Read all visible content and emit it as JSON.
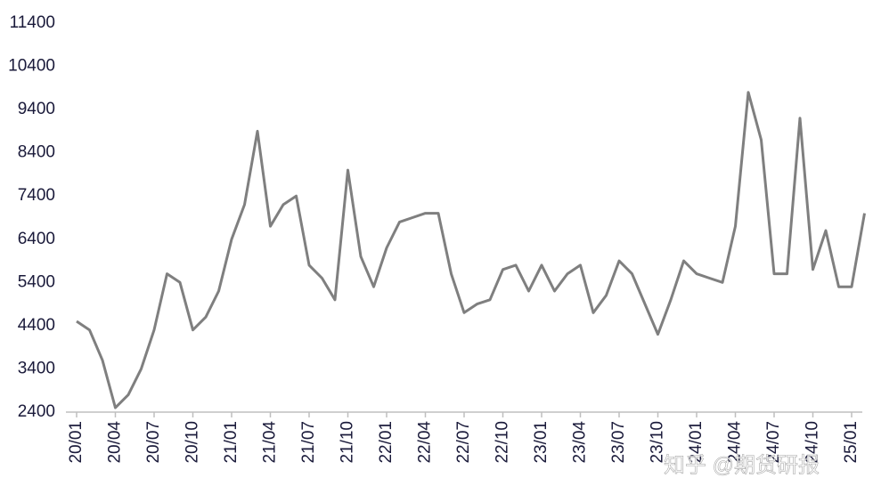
{
  "chart_data": {
    "type": "line",
    "categories": [
      "20/01",
      null,
      null,
      "20/04",
      null,
      null,
      "20/07",
      null,
      null,
      "20/10",
      null,
      null,
      "21/01",
      null,
      null,
      "21/04",
      null,
      null,
      "21/07",
      null,
      null,
      "21/10",
      null,
      null,
      "22/01",
      null,
      null,
      "22/04",
      null,
      null,
      "22/07",
      null,
      null,
      "22/10",
      null,
      null,
      "23/01",
      null,
      null,
      "23/04",
      null,
      null,
      "23/07",
      null,
      null,
      "23/10",
      null,
      null,
      "24/01",
      null,
      null,
      "24/04",
      null,
      null,
      "24/07",
      null,
      null,
      "24/10",
      null,
      null,
      "25/01",
      null
    ],
    "series": [
      {
        "color": "#7f7f7f",
        "values": [
          4500,
          4300,
          3600,
          2500,
          2800,
          3400,
          4300,
          5600,
          5400,
          4300,
          4600,
          5200,
          6400,
          7200,
          8900,
          6700,
          7200,
          7400,
          5800,
          5500,
          5000,
          8000,
          6000,
          5300,
          6200,
          6800,
          6900,
          7000,
          7000,
          5600,
          4700,
          4900,
          5000,
          5700,
          5800,
          5200,
          5800,
          5200,
          5600,
          5800,
          4700,
          5100,
          5900,
          5600,
          4900,
          4200,
          5000,
          5900,
          5600,
          5500,
          5400,
          6700,
          9800,
          8700,
          5600,
          5600,
          9200,
          5700,
          6600,
          5300,
          5300,
          7000
        ]
      }
    ],
    "ylim": [
      2400,
      11400
    ],
    "yticks": [
      2400,
      3400,
      4400,
      5400,
      6400,
      7400,
      8400,
      9400,
      10400,
      11400
    ],
    "watermark": "知乎 @期货研报"
  }
}
